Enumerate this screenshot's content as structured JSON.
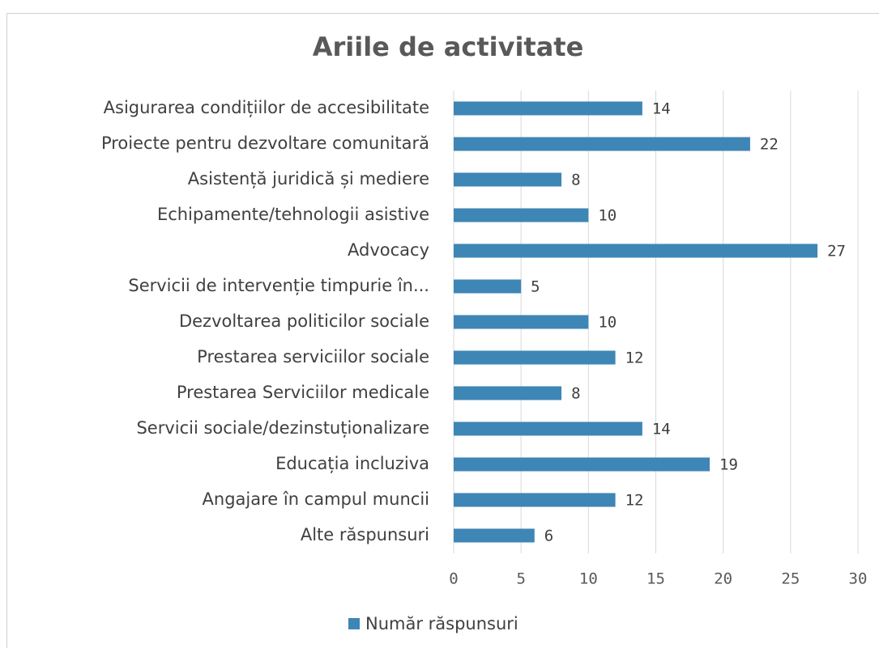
{
  "chart_data": {
    "type": "barh",
    "title": "Ariile de activitate",
    "categories": [
      "Asigurarea condițiilor de accesibilitate",
      "Proiecte pentru dezvoltare comunitară",
      "Asistență juridică și mediere",
      "Echipamente/tehnologii asistive",
      "Advocacy",
      "Servicii de intervenție timpurie în...",
      "Dezvoltarea politicilor sociale",
      "Prestarea serviciilor sociale",
      "Prestarea Serviciilor medicale",
      "Servicii sociale/dezinstuționalizare",
      "Educația incluziva",
      "Angajare în campul muncii",
      "Alte răspunsuri"
    ],
    "series": [
      {
        "name": "Număr răspunsuri",
        "color": "#3e86b5",
        "values": [
          14,
          22,
          8,
          10,
          27,
          5,
          10,
          12,
          8,
          14,
          19,
          12,
          6
        ]
      }
    ],
    "xlim": [
      0,
      30
    ],
    "xticks": [
      0,
      5,
      10,
      15,
      20,
      25,
      30
    ],
    "grid": true,
    "legend": "bottom"
  }
}
